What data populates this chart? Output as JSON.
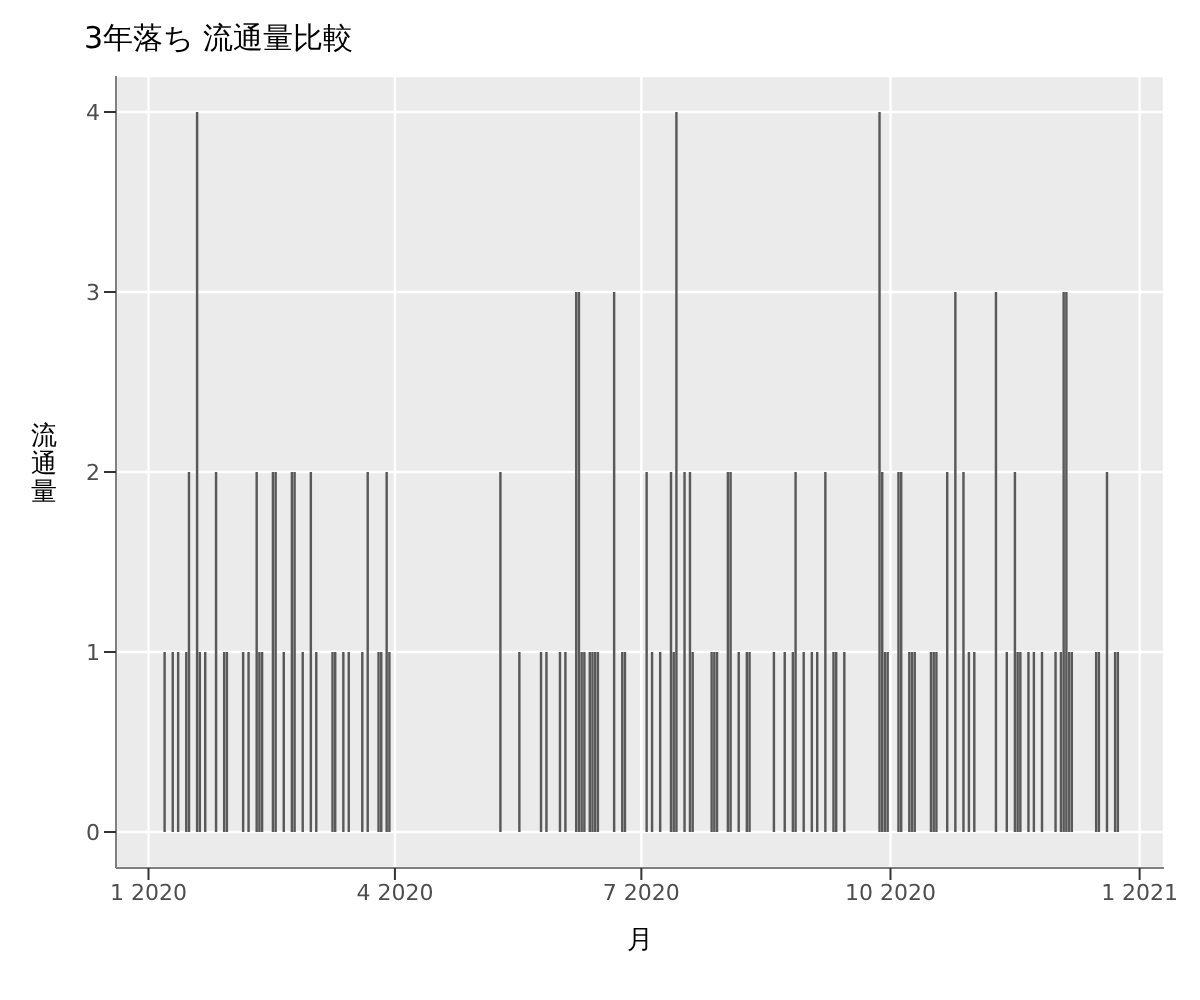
{
  "chart_data": {
    "type": "bar",
    "title": "3年落ち 流通量比較",
    "xlabel": "月",
    "ylabel": "流通量",
    "color": "#595959",
    "grid": true,
    "x": [
      "2020-01-07",
      "2020-01-10",
      "2020-01-12",
      "2020-01-15",
      "2020-01-16",
      "2020-01-19",
      "2020-01-20",
      "2020-01-22",
      "2020-01-26",
      "2020-01-29",
      "2020-01-30",
      "2020-02-05",
      "2020-02-07",
      "2020-02-10",
      "2020-02-11",
      "2020-02-12",
      "2020-02-16",
      "2020-02-17",
      "2020-02-20",
      "2020-02-23",
      "2020-02-24",
      "2020-02-27",
      "2020-03-01",
      "2020-03-03",
      "2020-03-09",
      "2020-03-10",
      "2020-03-13",
      "2020-03-15",
      "2020-03-20",
      "2020-03-22",
      "2020-03-26",
      "2020-03-27",
      "2020-03-29",
      "2020-03-30",
      "2020-05-10",
      "2020-05-17",
      "2020-05-25",
      "2020-05-27",
      "2020-06-01",
      "2020-06-03",
      "2020-06-07",
      "2020-06-08",
      "2020-06-09",
      "2020-06-10",
      "2020-06-12",
      "2020-06-13",
      "2020-06-14",
      "2020-06-15",
      "2020-06-21",
      "2020-06-24",
      "2020-06-25",
      "2020-07-03",
      "2020-07-05",
      "2020-07-08",
      "2020-07-12",
      "2020-07-13",
      "2020-07-14",
      "2020-07-17",
      "2020-07-19",
      "2020-07-20",
      "2020-07-27",
      "2020-07-28",
      "2020-07-29",
      "2020-08-02",
      "2020-08-03",
      "2020-08-06",
      "2020-08-09",
      "2020-08-10",
      "2020-08-19",
      "2020-08-23",
      "2020-08-26",
      "2020-08-27",
      "2020-08-30",
      "2020-09-02",
      "2020-09-04",
      "2020-09-07",
      "2020-09-10",
      "2020-09-11",
      "2020-09-14",
      "2020-09-27",
      "2020-09-28",
      "2020-09-29",
      "2020-09-30",
      "2020-10-04",
      "2020-10-05",
      "2020-10-08",
      "2020-10-09",
      "2020-10-10",
      "2020-10-16",
      "2020-10-17",
      "2020-10-18",
      "2020-10-22",
      "2020-10-25",
      "2020-10-28",
      "2020-10-30",
      "2020-11-01",
      "2020-11-09",
      "2020-11-13",
      "2020-11-16",
      "2020-11-17",
      "2020-11-18",
      "2020-11-21",
      "2020-11-23",
      "2020-11-26",
      "2020-12-01",
      "2020-12-03",
      "2020-12-04",
      "2020-12-05",
      "2020-12-06",
      "2020-12-07",
      "2020-12-16",
      "2020-12-17",
      "2020-12-20",
      "2020-12-23",
      "2020-12-24"
    ],
    "values": [
      1,
      1,
      1,
      1,
      2,
      4,
      1,
      1,
      2,
      1,
      1,
      1,
      1,
      2,
      1,
      1,
      2,
      2,
      1,
      2,
      2,
      1,
      2,
      1,
      1,
      1,
      1,
      1,
      1,
      2,
      1,
      1,
      2,
      1,
      2,
      1,
      1,
      1,
      1,
      1,
      3,
      3,
      1,
      1,
      1,
      1,
      1,
      1,
      3,
      1,
      1,
      2,
      1,
      1,
      2,
      1,
      4,
      2,
      2,
      1,
      1,
      1,
      1,
      2,
      2,
      1,
      1,
      1,
      1,
      1,
      1,
      2,
      1,
      1,
      1,
      2,
      1,
      1,
      1,
      4,
      2,
      1,
      1,
      2,
      2,
      1,
      1,
      1,
      1,
      1,
      1,
      2,
      3,
      2,
      1,
      1,
      3,
      1,
      2,
      1,
      1,
      1,
      1,
      1,
      1,
      1,
      3,
      3,
      1,
      1,
      1,
      1,
      2,
      1,
      1
    ],
    "xlim": [
      "2019-12-20",
      "2021-01-10"
    ],
    "xticks": [
      {
        "value": "2020-01-01",
        "label": "1 2020"
      },
      {
        "value": "2020-04-01",
        "label": "4 2020"
      },
      {
        "value": "2020-07-01",
        "label": "7 2020"
      },
      {
        "value": "2020-10-01",
        "label": "10 2020"
      },
      {
        "value": "2021-01-01",
        "label": "1 2021"
      }
    ],
    "ylim": [
      -0.2,
      4.2
    ],
    "yticks": [
      0,
      1,
      2,
      3,
      4
    ]
  }
}
